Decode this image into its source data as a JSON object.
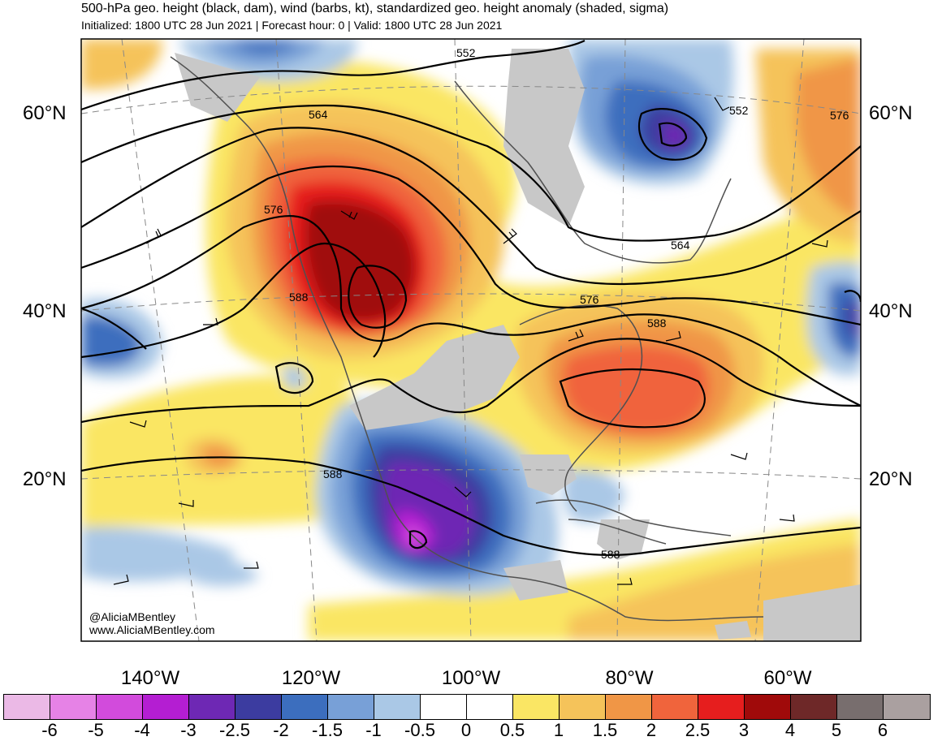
{
  "header": {
    "title": "500-hPa geo. height (black, dam), wind (barbs, kt), standardized geo. height anomaly (shaded, sigma)",
    "subtitle": "Initialized: 1800 UTC 28 Jun 2021 | Forecast hour: 0 | Valid: 1800 UTC 28 Jun 2021"
  },
  "map": {
    "lat_labels_left": [
      "60°N",
      "40°N",
      "20°N"
    ],
    "lat_labels_right": [
      "60°N",
      "40°N",
      "20°N"
    ],
    "lon_labels": [
      "140°W",
      "120°W",
      "100°W",
      "80°W",
      "60°W"
    ],
    "contour_labels": [
      "552",
      "552",
      "564",
      "564",
      "576",
      "576",
      "576",
      "588",
      "588",
      "588",
      "588"
    ],
    "credit": {
      "handle": "@AliciaMBentley",
      "website": "www.AliciaMBentley.com"
    }
  },
  "colorbar": {
    "ticks": [
      "-6",
      "-5",
      "-4",
      "-3",
      "-2.5",
      "-2",
      "-1.5",
      "-1",
      "-0.5",
      "0",
      "0.5",
      "1",
      "1.5",
      "2",
      "2.5",
      "3",
      "4",
      "5",
      "6"
    ],
    "colors": [
      "#ebb9e6",
      "#e682e6",
      "#d24bdc",
      "#b41ed2",
      "#6e28b4",
      "#3c3ca0",
      "#3c6ebe",
      "#78a0d7",
      "#aac8e6",
      "#ffffff",
      "#ffffff",
      "#fae664",
      "#f5c35a",
      "#f09646",
      "#f0643c",
      "#e61e1e",
      "#a00a0a",
      "#6e2828",
      "#786e6e",
      "#aaa0a0"
    ]
  }
}
